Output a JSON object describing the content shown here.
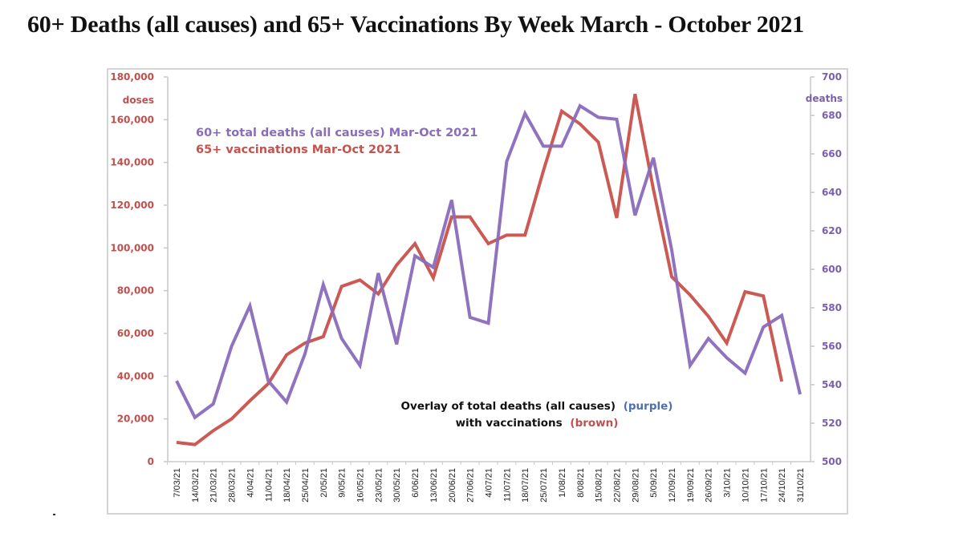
{
  "title": "60+ Deaths (all causes)  and 65+ Vaccinations By Week  March - October 2021",
  "colors": {
    "vaccinations": "#c9514b",
    "deaths": "#8a6cba",
    "left_axis_text": "#c0504d",
    "right_axis_text": "#7a5fae",
    "annotation_purple": "#4f6fb0",
    "annotation_brown": "#c0504d",
    "annotation_black": "#111111"
  },
  "chart_data": {
    "type": "line",
    "title": "60+ Deaths (all causes)  and 65+ Vaccinations By Week  March - October 2021",
    "xlabel": "",
    "categories": [
      "7/03/21",
      "14/03/21",
      "21/03/21",
      "28/03/21",
      "4/04/21",
      "11/04/21",
      "18/04/21",
      "25/04/21",
      "2/05/21",
      "9/05/21",
      "16/05/21",
      "23/05/21",
      "30/05/21",
      "6/06/21",
      "13/06/21",
      "20/06/21",
      "27/06/21",
      "4/07/21",
      "11/07/21",
      "18/07/21",
      "25/07/21",
      "1/08/21",
      "8/08/21",
      "15/08/21",
      "22/08/21",
      "29/08/21",
      "5/09/21",
      "12/09/21",
      "19/09/21",
      "26/09/21",
      "3/10/21",
      "10/10/21",
      "17/10/21",
      "24/10/21",
      "31/10/21"
    ],
    "left_axis": {
      "label": "doses",
      "range": [
        0,
        180000
      ],
      "ticks": [
        "0",
        "20,000",
        "40,000",
        "60,000",
        "80,000",
        "100,000",
        "120,000",
        "140,000",
        "160,000",
        "180,000"
      ]
    },
    "right_axis": {
      "label": "deaths",
      "range": [
        500,
        700
      ],
      "ticks": [
        "500",
        "520",
        "540",
        "560",
        "580",
        "600",
        "620",
        "640",
        "660",
        "680",
        "700"
      ]
    },
    "series": [
      {
        "name": "65+ vaccinations Mar-Oct 2021",
        "axis": "left",
        "color_key": "vaccinations",
        "values": [
          9000,
          8000,
          14500,
          20000,
          28500,
          36500,
          50000,
          55500,
          58500,
          82000,
          85000,
          78500,
          92000,
          102000,
          86000,
          114500,
          114500,
          102000,
          106000,
          106000,
          136000,
          164000,
          158000,
          149500,
          114000,
          172000,
          127500,
          86500,
          78000,
          68000,
          55500,
          79500,
          77500,
          37500,
          null
        ]
      },
      {
        "name": "60+ total deaths (all causes) Mar-Oct 2021",
        "axis": "right",
        "color_key": "deaths",
        "values": [
          542,
          523,
          530,
          560,
          581,
          542,
          531,
          556,
          592,
          564,
          550,
          598,
          561,
          607,
          601,
          636,
          575,
          572,
          656,
          681,
          664,
          664,
          685,
          679,
          678,
          628,
          658,
          610,
          550,
          564,
          554,
          546,
          570,
          576,
          535
        ]
      }
    ],
    "legend": {
      "position": "top-left",
      "entries": [
        "60+ total deaths (all causes) Mar-Oct 2021",
        "65+ vaccinations Mar-Oct 2021"
      ]
    },
    "annotation": {
      "line1": "Overlay of total deaths (all causes)",
      "line1_highlight": "(purple)",
      "line2": "with vaccinations",
      "line2_highlight": "(brown)"
    },
    "grid": false
  }
}
